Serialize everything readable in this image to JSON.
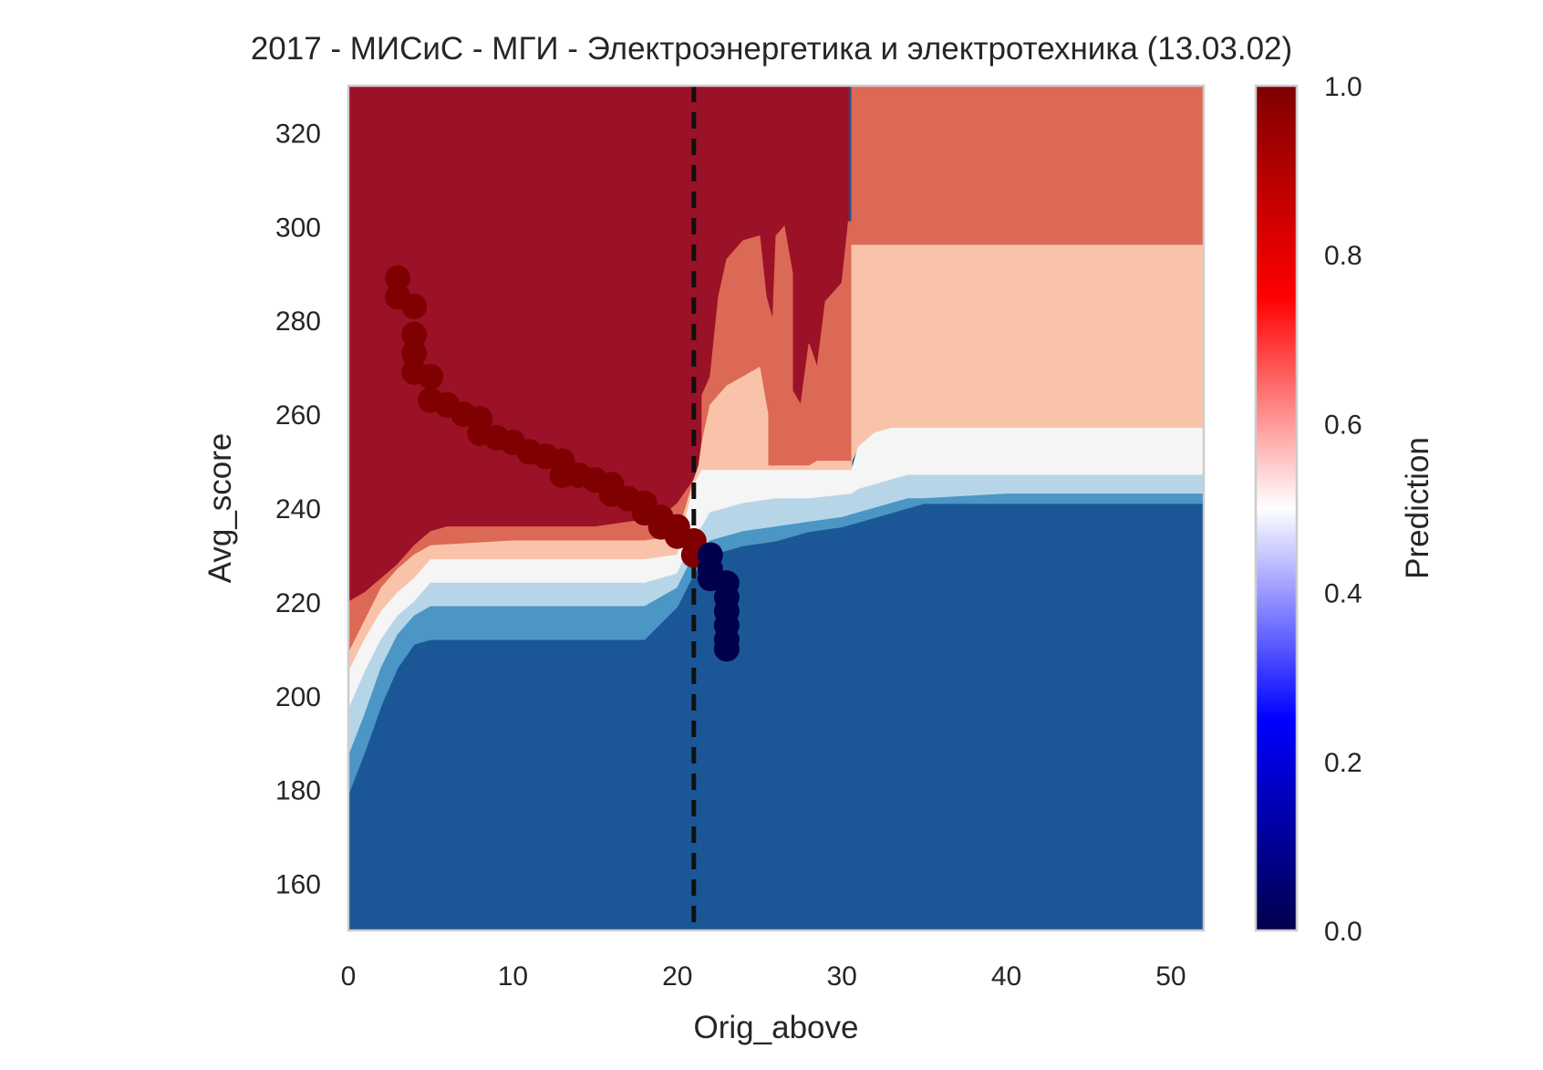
{
  "chart_data": {
    "type": "heatmap",
    "title": "2017 - МИСиС - МГИ - Электроэнергетика и электротехника (13.03.02)",
    "xlabel": "Orig_above",
    "ylabel": "Avg_score",
    "xlim": [
      0,
      52
    ],
    "ylim": [
      150,
      330
    ],
    "x_ticks": [
      0,
      10,
      20,
      30,
      40,
      50
    ],
    "y_ticks": [
      160,
      180,
      200,
      220,
      240,
      260,
      280,
      300,
      320
    ],
    "grid": false,
    "colorbar": {
      "label": "Prediction",
      "range": [
        0,
        1
      ],
      "ticks": [
        "0.0",
        "0.2",
        "0.4",
        "0.6",
        "0.8",
        "1.0"
      ],
      "stops": [
        {
          "value": 0.0,
          "color": "#00004c"
        },
        {
          "value": 0.25,
          "color": "#0000ff"
        },
        {
          "value": 0.5,
          "color": "#ffffff"
        },
        {
          "value": 0.75,
          "color": "#ff0000"
        },
        {
          "value": 1.0,
          "color": "#7f0000"
        }
      ]
    },
    "threshold_x": 21,
    "region_colors": {
      "p0": "#1b5797",
      "p1": "#4b96c5",
      "p2": "#b6d6e8",
      "p3": "#f5f5f5",
      "p4": "#f9c3a9",
      "p5": "#dc6955",
      "p6": "#9b1127"
    },
    "regions": [
      {
        "level": "p6",
        "points": [
          [
            0,
            330
          ],
          [
            30.4,
            330
          ],
          [
            30.4,
            301
          ],
          [
            30.6,
            301
          ],
          [
            30.6,
            248
          ],
          [
            28,
            248
          ],
          [
            27,
            248
          ],
          [
            25,
            248
          ],
          [
            23,
            248
          ],
          [
            21.5,
            248
          ],
          [
            21,
            246
          ],
          [
            20,
            241
          ],
          [
            19,
            238
          ],
          [
            15,
            236
          ],
          [
            10,
            236
          ],
          [
            6,
            236
          ],
          [
            5,
            235
          ],
          [
            4,
            232
          ],
          [
            3,
            228
          ],
          [
            2,
            225
          ],
          [
            1,
            222
          ],
          [
            0,
            220
          ]
        ]
      },
      {
        "level": "p5",
        "points": [
          [
            30.6,
            330
          ],
          [
            52,
            330
          ],
          [
            52,
            296
          ],
          [
            30.6,
            296
          ],
          [
            30.6,
            248
          ],
          [
            30.4,
            248
          ],
          [
            30.4,
            301
          ],
          [
            30.6,
            301
          ]
        ]
      },
      {
        "level": "p5",
        "points": [
          [
            0,
            220
          ],
          [
            1,
            222
          ],
          [
            2,
            225
          ],
          [
            3,
            228
          ],
          [
            4,
            232
          ],
          [
            5,
            235
          ],
          [
            6,
            236
          ],
          [
            10,
            236
          ],
          [
            15,
            236
          ],
          [
            19,
            238
          ],
          [
            20,
            241
          ],
          [
            21,
            246
          ],
          [
            21.5,
            248
          ],
          [
            21.5,
            264
          ],
          [
            22,
            268
          ],
          [
            22.5,
            285
          ],
          [
            23,
            293
          ],
          [
            24,
            297
          ],
          [
            25,
            298
          ],
          [
            25.4,
            285
          ],
          [
            25.8,
            280
          ],
          [
            26,
            298
          ],
          [
            26.5,
            300
          ],
          [
            27,
            290
          ],
          [
            27,
            265
          ],
          [
            27.5,
            262
          ],
          [
            28,
            275
          ],
          [
            28.5,
            270
          ],
          [
            29,
            284
          ],
          [
            29.5,
            286
          ],
          [
            30,
            288
          ],
          [
            30.4,
            301
          ],
          [
            30.6,
            301
          ],
          [
            30.6,
            248
          ],
          [
            28,
            248
          ],
          [
            27,
            248
          ],
          [
            21.5,
            248
          ],
          [
            21,
            246
          ],
          [
            20,
            234
          ],
          [
            18,
            233
          ],
          [
            15,
            233
          ],
          [
            10,
            233
          ],
          [
            5,
            232
          ],
          [
            4,
            230
          ],
          [
            3,
            227
          ],
          [
            2,
            223
          ],
          [
            1,
            216
          ],
          [
            0,
            209
          ]
        ]
      },
      {
        "level": "p4",
        "points": [
          [
            0,
            209
          ],
          [
            1,
            216
          ],
          [
            2,
            223
          ],
          [
            3,
            227
          ],
          [
            4,
            230
          ],
          [
            5,
            232
          ],
          [
            10,
            233
          ],
          [
            15,
            233
          ],
          [
            18,
            233
          ],
          [
            20,
            234
          ],
          [
            21,
            246
          ],
          [
            21.3,
            249
          ],
          [
            21.5,
            254
          ],
          [
            22,
            262
          ],
          [
            23,
            266
          ],
          [
            24,
            268
          ],
          [
            25,
            270
          ],
          [
            25.5,
            260
          ],
          [
            25.5,
            249
          ],
          [
            28,
            249
          ],
          [
            28.5,
            250
          ],
          [
            30.6,
            250
          ],
          [
            30.6,
            296
          ],
          [
            52,
            296
          ],
          [
            52,
            257
          ],
          [
            33,
            257
          ],
          [
            32,
            256
          ],
          [
            31,
            253
          ],
          [
            30.6,
            250
          ],
          [
            30.6,
            248
          ],
          [
            21.5,
            248
          ],
          [
            21,
            245
          ],
          [
            20,
            230
          ],
          [
            18,
            229
          ],
          [
            15,
            229
          ],
          [
            10,
            229
          ],
          [
            5,
            229
          ],
          [
            4,
            225
          ],
          [
            3,
            222
          ],
          [
            2,
            218
          ],
          [
            1,
            212
          ],
          [
            0,
            205
          ]
        ]
      },
      {
        "level": "p3",
        "points": [
          [
            0,
            205
          ],
          [
            1,
            212
          ],
          [
            2,
            218
          ],
          [
            3,
            222
          ],
          [
            4,
            225
          ],
          [
            5,
            229
          ],
          [
            10,
            229
          ],
          [
            15,
            229
          ],
          [
            18,
            229
          ],
          [
            20,
            230
          ],
          [
            21,
            245
          ],
          [
            21.5,
            248
          ],
          [
            30.6,
            248
          ],
          [
            31,
            253
          ],
          [
            32,
            256
          ],
          [
            33,
            257
          ],
          [
            52,
            257
          ],
          [
            52,
            247
          ],
          [
            34,
            247
          ],
          [
            33,
            246
          ],
          [
            32,
            245
          ],
          [
            31,
            244
          ],
          [
            30.6,
            243
          ],
          [
            28,
            242
          ],
          [
            26,
            242
          ],
          [
            24,
            241
          ],
          [
            23,
            240
          ],
          [
            22,
            239
          ],
          [
            21.5,
            236
          ],
          [
            21,
            234
          ],
          [
            20,
            226
          ],
          [
            18,
            224
          ],
          [
            15,
            224
          ],
          [
            10,
            224
          ],
          [
            5,
            224
          ],
          [
            4,
            220
          ],
          [
            3,
            217
          ],
          [
            2,
            212
          ],
          [
            1,
            205
          ],
          [
            0,
            197
          ]
        ]
      },
      {
        "level": "p2",
        "points": [
          [
            0,
            197
          ],
          [
            1,
            205
          ],
          [
            2,
            212
          ],
          [
            3,
            217
          ],
          [
            4,
            220
          ],
          [
            5,
            224
          ],
          [
            10,
            224
          ],
          [
            15,
            224
          ],
          [
            18,
            224
          ],
          [
            20,
            226
          ],
          [
            21,
            234
          ],
          [
            21.5,
            236
          ],
          [
            22,
            239
          ],
          [
            23,
            240
          ],
          [
            24,
            241
          ],
          [
            26,
            242
          ],
          [
            28,
            242
          ],
          [
            30.6,
            243
          ],
          [
            31,
            244
          ],
          [
            32,
            245
          ],
          [
            33,
            246
          ],
          [
            34,
            247
          ],
          [
            52,
            247
          ],
          [
            52,
            243
          ],
          [
            40,
            243
          ],
          [
            35,
            242
          ],
          [
            34,
            242
          ],
          [
            33,
            241
          ],
          [
            31,
            239
          ],
          [
            30,
            238
          ],
          [
            28,
            237
          ],
          [
            26,
            236
          ],
          [
            24,
            235
          ],
          [
            23,
            234
          ],
          [
            22,
            233
          ],
          [
            21.5,
            231
          ],
          [
            21,
            230
          ],
          [
            20,
            223
          ],
          [
            18,
            219
          ],
          [
            15,
            219
          ],
          [
            10,
            219
          ],
          [
            5,
            219
          ],
          [
            4,
            217
          ],
          [
            3,
            213
          ],
          [
            2,
            206
          ],
          [
            1,
            196
          ],
          [
            0,
            187
          ]
        ]
      },
      {
        "level": "p1",
        "points": [
          [
            0,
            187
          ],
          [
            1,
            196
          ],
          [
            2,
            206
          ],
          [
            3,
            213
          ],
          [
            4,
            217
          ],
          [
            5,
            219
          ],
          [
            10,
            219
          ],
          [
            15,
            219
          ],
          [
            18,
            219
          ],
          [
            20,
            223
          ],
          [
            21,
            230
          ],
          [
            21.5,
            231
          ],
          [
            22,
            233
          ],
          [
            23,
            234
          ],
          [
            24,
            235
          ],
          [
            26,
            236
          ],
          [
            28,
            237
          ],
          [
            30,
            238
          ],
          [
            31,
            239
          ],
          [
            33,
            241
          ],
          [
            34,
            242
          ],
          [
            35,
            242
          ],
          [
            40,
            243
          ],
          [
            52,
            243
          ],
          [
            52,
            241
          ],
          [
            40,
            241
          ],
          [
            35,
            241
          ],
          [
            33,
            239
          ],
          [
            30,
            236
          ],
          [
            28,
            235
          ],
          [
            26,
            233
          ],
          [
            24,
            232
          ],
          [
            23,
            231
          ],
          [
            22,
            230
          ],
          [
            21.5,
            228
          ],
          [
            21,
            226
          ],
          [
            20,
            219
          ],
          [
            18,
            212
          ],
          [
            15,
            212
          ],
          [
            10,
            212
          ],
          [
            5,
            212
          ],
          [
            4,
            211
          ],
          [
            3,
            206
          ],
          [
            2,
            198
          ],
          [
            1,
            188
          ],
          [
            0,
            179
          ]
        ]
      }
    ],
    "background_level": "p0",
    "trajectory_points": [
      {
        "x": 3,
        "y": 289,
        "p": 1
      },
      {
        "x": 3,
        "y": 285,
        "p": 1
      },
      {
        "x": 4,
        "y": 283,
        "p": 1
      },
      {
        "x": 4,
        "y": 277,
        "p": 1
      },
      {
        "x": 4,
        "y": 273,
        "p": 1
      },
      {
        "x": 4,
        "y": 269,
        "p": 1
      },
      {
        "x": 5,
        "y": 268,
        "p": 1
      },
      {
        "x": 5,
        "y": 263,
        "p": 1
      },
      {
        "x": 6,
        "y": 262,
        "p": 1
      },
      {
        "x": 7,
        "y": 260,
        "p": 1
      },
      {
        "x": 8,
        "y": 259,
        "p": 1
      },
      {
        "x": 8,
        "y": 256,
        "p": 1
      },
      {
        "x": 9,
        "y": 255,
        "p": 1
      },
      {
        "x": 10,
        "y": 254,
        "p": 1
      },
      {
        "x": 11,
        "y": 252,
        "p": 1
      },
      {
        "x": 12,
        "y": 251,
        "p": 1
      },
      {
        "x": 13,
        "y": 250,
        "p": 1
      },
      {
        "x": 13,
        "y": 247,
        "p": 1
      },
      {
        "x": 14,
        "y": 247,
        "p": 1
      },
      {
        "x": 15,
        "y": 246,
        "p": 1
      },
      {
        "x": 16,
        "y": 245,
        "p": 1
      },
      {
        "x": 16,
        "y": 243,
        "p": 1
      },
      {
        "x": 17,
        "y": 242,
        "p": 1
      },
      {
        "x": 18,
        "y": 241,
        "p": 1
      },
      {
        "x": 18,
        "y": 239,
        "p": 1
      },
      {
        "x": 19,
        "y": 238,
        "p": 1
      },
      {
        "x": 19,
        "y": 236,
        "p": 1
      },
      {
        "x": 20,
        "y": 236,
        "p": 1
      },
      {
        "x": 20,
        "y": 234,
        "p": 1
      },
      {
        "x": 21,
        "y": 233,
        "p": 1
      },
      {
        "x": 21,
        "y": 230,
        "p": 1
      },
      {
        "x": 22,
        "y": 230,
        "p": 0
      },
      {
        "x": 22,
        "y": 227,
        "p": 0
      },
      {
        "x": 22,
        "y": 225,
        "p": 0
      },
      {
        "x": 23,
        "y": 224,
        "p": 0
      },
      {
        "x": 23,
        "y": 221,
        "p": 0
      },
      {
        "x": 23,
        "y": 218,
        "p": 0
      },
      {
        "x": 23,
        "y": 215,
        "p": 0
      },
      {
        "x": 23,
        "y": 212,
        "p": 0
      },
      {
        "x": 23,
        "y": 210,
        "p": 0
      }
    ]
  }
}
